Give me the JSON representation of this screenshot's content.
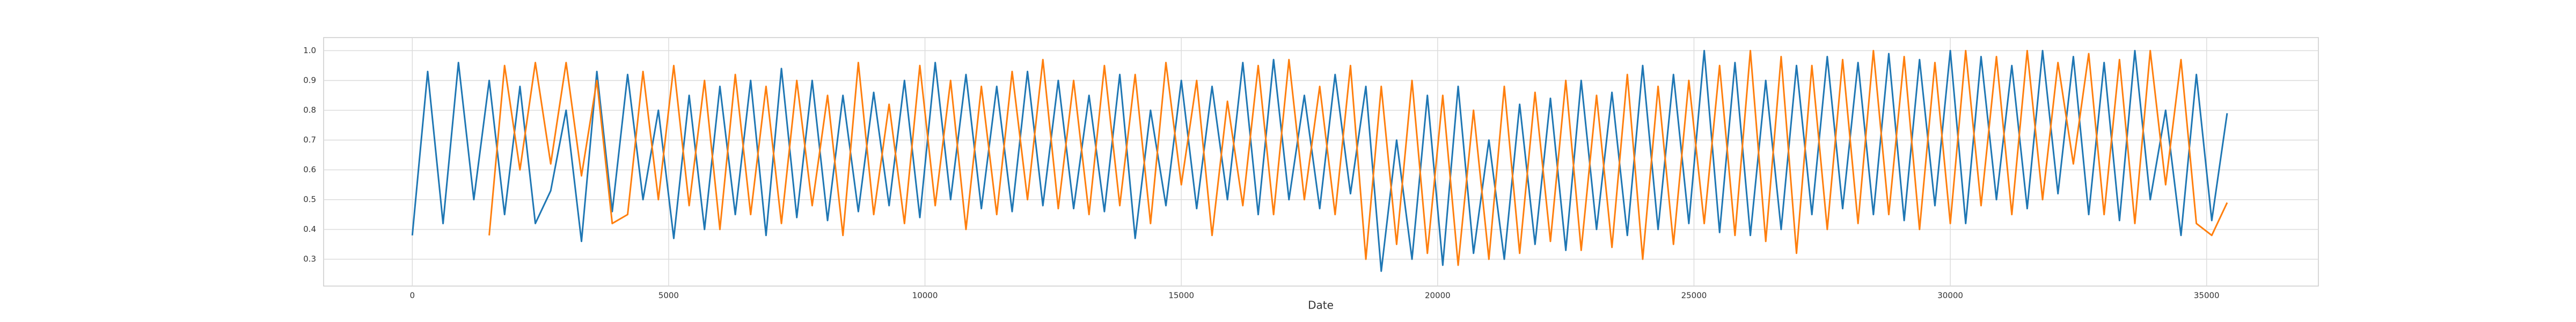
{
  "chart_data": {
    "type": "line",
    "x_label": "Date",
    "grid": true,
    "xlim": [
      -1730,
      37180
    ],
    "ylim": [
      0.21,
      1.044
    ],
    "xticks": [
      0,
      5000,
      10000,
      15000,
      20000,
      25000,
      30000,
      35000
    ],
    "yticks": [
      0.3,
      0.4,
      0.5,
      0.6,
      0.7,
      0.8,
      0.9,
      {
        "value": 1,
        "label": "1.0"
      }
    ],
    "x": [
      0,
      300,
      600,
      900,
      1200,
      1500,
      1800,
      2100,
      2400,
      2700,
      3000,
      3300,
      3600,
      3900,
      4200,
      4500,
      4800,
      5100,
      5400,
      5700,
      6000,
      6300,
      6600,
      6900,
      7200,
      7500,
      7800,
      8100,
      8400,
      8700,
      9000,
      9300,
      9600,
      9900,
      10200,
      10500,
      10800,
      11100,
      11400,
      11700,
      12000,
      12300,
      12600,
      12900,
      13200,
      13500,
      13800,
      14100,
      14400,
      14700,
      15000,
      15300,
      15600,
      15900,
      16200,
      16500,
      16800,
      17100,
      17400,
      17700,
      18000,
      18300,
      18600,
      18900,
      19200,
      19500,
      19800,
      20100,
      20400,
      20700,
      21000,
      21300,
      21600,
      21900,
      22200,
      22500,
      22800,
      23100,
      23400,
      23700,
      24000,
      24300,
      24600,
      24900,
      25200,
      25500,
      25800,
      26100,
      26400,
      26700,
      27000,
      27300,
      27600,
      27900,
      28200,
      28500,
      28800,
      29100,
      29400,
      29700,
      30000,
      30300,
      30600,
      30900,
      31200,
      31500,
      31800,
      32100,
      32400,
      32700,
      33000,
      33300,
      33600,
      33900,
      34200,
      34500,
      34800,
      35100,
      35400
    ],
    "series": [
      {
        "color": "#1f77b4",
        "values": [
          0.38,
          0.93,
          0.42,
          0.96,
          0.5,
          0.9,
          0.45,
          0.88,
          0.42,
          0.53,
          0.8,
          0.36,
          0.93,
          0.46,
          0.92,
          0.5,
          0.8,
          0.37,
          0.85,
          0.4,
          0.88,
          0.45,
          0.9,
          0.38,
          0.94,
          0.44,
          0.9,
          0.43,
          0.85,
          0.46,
          0.86,
          0.48,
          0.9,
          0.44,
          0.96,
          0.5,
          0.92,
          0.47,
          0.88,
          0.46,
          0.93,
          0.48,
          0.9,
          0.47,
          0.85,
          0.46,
          0.92,
          0.37,
          0.8,
          0.48,
          0.9,
          0.47,
          0.88,
          0.5,
          0.96,
          0.45,
          0.97,
          0.5,
          0.85,
          0.47,
          0.92,
          0.52,
          0.88,
          0.26,
          0.7,
          0.3,
          0.85,
          0.28,
          0.88,
          0.32,
          0.7,
          0.3,
          0.82,
          0.35,
          0.84,
          0.33,
          0.9,
          0.4,
          0.86,
          0.38,
          0.95,
          0.4,
          0.92,
          0.42,
          1.0,
          0.39,
          0.96,
          0.38,
          0.9,
          0.4,
          0.95,
          0.45,
          0.98,
          0.47,
          0.96,
          0.45,
          0.99,
          0.43,
          0.97,
          0.48,
          1.0,
          0.42,
          0.98,
          0.5,
          0.95,
          0.47,
          1.0,
          0.52,
          0.98,
          0.45,
          0.96,
          0.43,
          1.0,
          0.5,
          0.8,
          0.38,
          0.92,
          0.43,
          0.79
        ]
      },
      {
        "color": "#ff7f0e",
        "values": [
          null,
          null,
          null,
          null,
          null,
          0.38,
          0.95,
          0.6,
          0.96,
          0.62,
          0.96,
          0.58,
          0.9,
          0.42,
          0.45,
          0.93,
          0.5,
          0.95,
          0.48,
          0.9,
          0.4,
          0.92,
          0.45,
          0.88,
          0.42,
          0.9,
          0.48,
          0.85,
          0.38,
          0.96,
          0.45,
          0.82,
          0.42,
          0.95,
          0.48,
          0.9,
          0.4,
          0.88,
          0.45,
          0.93,
          0.5,
          0.97,
          0.47,
          0.9,
          0.45,
          0.95,
          0.48,
          0.92,
          0.42,
          0.96,
          0.55,
          0.9,
          0.38,
          0.83,
          0.48,
          0.95,
          0.45,
          0.97,
          0.5,
          0.88,
          0.45,
          0.95,
          0.3,
          0.88,
          0.35,
          0.9,
          0.32,
          0.85,
          0.28,
          0.8,
          0.3,
          0.88,
          0.32,
          0.86,
          0.36,
          0.9,
          0.33,
          0.85,
          0.34,
          0.92,
          0.3,
          0.88,
          0.35,
          0.9,
          0.42,
          0.95,
          0.38,
          1.0,
          0.36,
          0.98,
          0.32,
          0.95,
          0.4,
          0.97,
          0.42,
          1.0,
          0.45,
          0.98,
          0.4,
          0.96,
          0.42,
          1.0,
          0.48,
          0.98,
          0.45,
          1.0,
          0.5,
          0.96,
          0.62,
          0.99,
          0.45,
          0.97,
          0.42,
          1.0,
          0.55,
          0.97,
          0.42,
          0.38,
          0.49
        ]
      }
    ]
  }
}
